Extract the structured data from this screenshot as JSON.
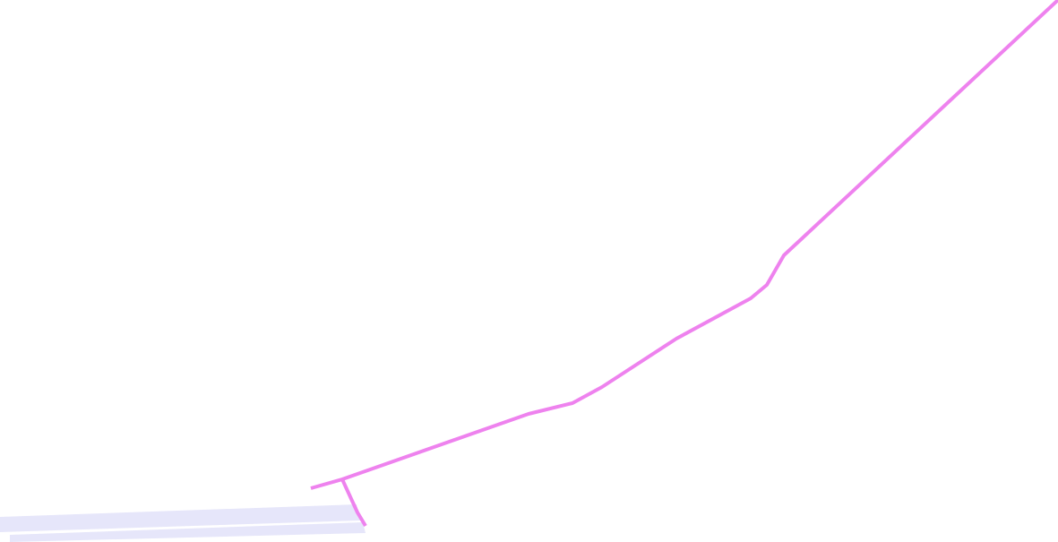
{
  "map": {
    "background_color": "#ffffff",
    "route": {
      "color": "#ee82ee"
    },
    "road_bands": {
      "fill_color": "#e6e6fa",
      "count": 2
    }
  }
}
